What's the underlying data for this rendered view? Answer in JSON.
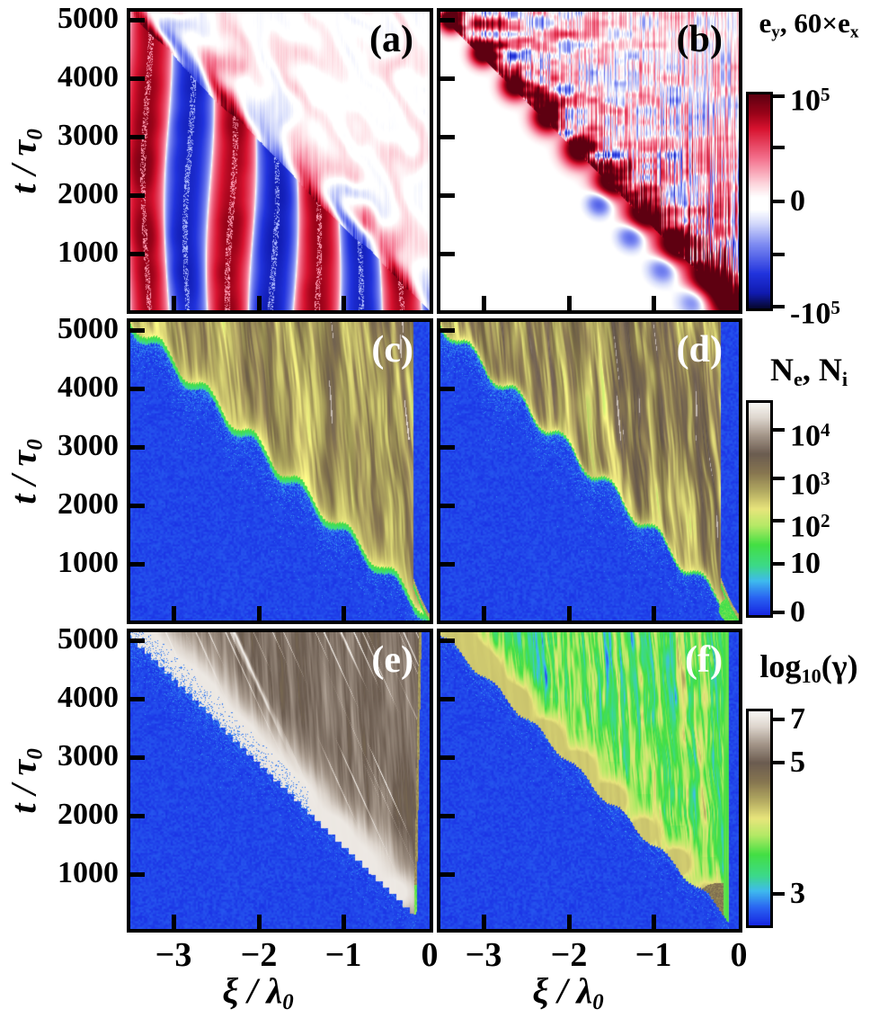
{
  "figure": {
    "panels": [
      {
        "id": "a",
        "label": "(a)",
        "label_color": "#000000",
        "quantity": "transverse field e_y"
      },
      {
        "id": "b",
        "label": "(b)",
        "label_color": "#000000",
        "quantity": "longitudinal field 60×e_x"
      },
      {
        "id": "c",
        "label": "(c)",
        "label_color": "#ffffff",
        "quantity": "electron density N_e"
      },
      {
        "id": "d",
        "label": "(d)",
        "label_color": "#ffffff",
        "quantity": "ion density N_i"
      },
      {
        "id": "e",
        "label": "(e)",
        "label_color": "#ffffff",
        "quantity": "electron log10(gamma)"
      },
      {
        "id": "f",
        "label": "(f)",
        "label_color": "#ffffff",
        "quantity": "ion log10(gamma)"
      }
    ],
    "x_axis": {
      "label_segments": [
        {
          "t": "ξ / λ"
        },
        {
          "sub": "0"
        }
      ],
      "tick_labels": [
        "−3",
        "−2",
        "−1",
        "0"
      ]
    },
    "y_axis": {
      "label_segments": [
        {
          "t": "t / τ"
        },
        {
          "sub": "0"
        }
      ],
      "tick_labels": [
        "5000",
        "4000",
        "3000",
        "2000",
        "1000"
      ]
    },
    "colorbars": [
      {
        "name": "field",
        "title_segments": [
          {
            "t": "e"
          },
          {
            "sub": "y"
          },
          {
            "t": ", 60×e"
          },
          {
            "sub": "x"
          }
        ],
        "colormap": "field_rwb",
        "ticks": [
          {
            "frac": 0.0,
            "label": [
              {
                "t": "10"
              },
              {
                "sup": "5"
              }
            ]
          },
          {
            "frac": 0.25,
            "label": []
          },
          {
            "frac": 0.5,
            "label": [
              {
                "t": "0"
              }
            ]
          },
          {
            "frac": 0.75,
            "label": []
          },
          {
            "frac": 1.0,
            "label": [
              {
                "t": "-10"
              },
              {
                "sup": "5"
              }
            ]
          }
        ]
      },
      {
        "name": "density",
        "title_segments": [
          {
            "t": "N"
          },
          {
            "sub": "e"
          },
          {
            "t": ", N"
          },
          {
            "sub": "i"
          }
        ],
        "colormap": "density",
        "ticks": [
          {
            "frac": 0.127,
            "label": [
              {
                "t": "10"
              },
              {
                "sup": "4"
              }
            ]
          },
          {
            "frac": 0.356,
            "label": [
              {
                "t": "10"
              },
              {
                "sup": "3"
              }
            ]
          },
          {
            "frac": 0.559,
            "label": [
              {
                "t": "10"
              },
              {
                "sup": "2"
              }
            ]
          },
          {
            "frac": 0.763,
            "label": [
              {
                "t": "10"
              }
            ]
          },
          {
            "frac": 0.991,
            "label": [
              {
                "t": "0"
              }
            ]
          }
        ]
      },
      {
        "name": "gamma",
        "title_segments": [
          {
            "t": "log"
          },
          {
            "sub": "10"
          },
          {
            "t": "(γ)"
          }
        ],
        "colormap": "density",
        "ticks": [
          {
            "frac": 0.038,
            "label": [
              {
                "t": "7"
              }
            ]
          },
          {
            "frac": 0.239,
            "label": [
              {
                "t": "5"
              }
            ]
          },
          {
            "frac": 0.857,
            "label": [
              {
                "t": "3"
              }
            ]
          }
        ]
      }
    ]
  },
  "chart_data": {
    "type": "heatmap",
    "layout": "3 rows x 2 columns of space-time maps sharing axes, one colorbar per row",
    "x": {
      "label": "ξ / λ0",
      "range": [
        -3.52,
        0
      ],
      "ticks": [
        -3,
        -2,
        -1,
        0
      ]
    },
    "y": {
      "label": "t / τ0",
      "range": [
        0,
        5100
      ],
      "ticks": [
        1000,
        2000,
        3000,
        4000,
        5000
      ]
    },
    "front": {
      "description": "hole-boring front: diagonal boundary running from (ξ≈-3.5, t≈5000) to (ξ≈0, t≈0)",
      "slope_t_per_xi": -1452,
      "blob_chain_xi": [
        -3.4,
        -3.02,
        -2.64,
        -2.26,
        -1.88,
        -1.5,
        -1.12,
        -0.74,
        -0.36
      ],
      "corner_xi": -0.08
    },
    "colorbar_scales": [
      {
        "panels": "a,b",
        "quantity": "e_y, 60×e_x",
        "type": "linear symmetric",
        "min": -100000,
        "max": 100000,
        "tick_values": [
          "10^5",
          "0",
          "-10^5"
        ]
      },
      {
        "panels": "c,d",
        "quantity": "N_e, N_i",
        "type": "log",
        "tick_values": [
          "10^4",
          "10^3",
          "10^2",
          "10",
          "0"
        ]
      },
      {
        "panels": "e,f",
        "quantity": "log10(γ)",
        "type": "linear",
        "tick_values": [
          7,
          5,
          3
        ]
      }
    ],
    "colormaps": {
      "field_rwb": [
        [
          0,
          "#5e0011"
        ],
        [
          0.09,
          "#9c0319"
        ],
        [
          0.16,
          "#d81330"
        ],
        [
          0.3,
          "#f4728e"
        ],
        [
          0.42,
          "#fdd7de"
        ],
        [
          0.48,
          "#ffffff"
        ],
        [
          0.54,
          "#ffffff"
        ],
        [
          0.6,
          "#d6dcfb"
        ],
        [
          0.7,
          "#7f8cf2"
        ],
        [
          0.84,
          "#2133dd"
        ],
        [
          0.93,
          "#101bb0"
        ],
        [
          1,
          "#060830"
        ]
      ],
      "density": [
        [
          0,
          "#f8f6f3"
        ],
        [
          0.07,
          "#ddd5cd"
        ],
        [
          0.15,
          "#a5978a"
        ],
        [
          0.24,
          "#6b5c50"
        ],
        [
          0.33,
          "#877650"
        ],
        [
          0.42,
          "#b5ac62"
        ],
        [
          0.5,
          "#e8e57c"
        ],
        [
          0.58,
          "#b4e966"
        ],
        [
          0.67,
          "#43df43"
        ],
        [
          0.77,
          "#3cd98a"
        ],
        [
          0.84,
          "#3fbbee"
        ],
        [
          0.92,
          "#2a63f2"
        ],
        [
          1,
          "#1728e2"
        ]
      ]
    },
    "panels": [
      {
        "id": "a",
        "content": "bold alternating red/blue vertical standing-wave stripes (period ≈ 1 λ0) below the front; faint pink/blue swirling field above the front"
      },
      {
        "id": "b",
        "content": "near-white background; chain of strong red spots along the front growing toward ξ=0; pale red/blue mottling and fine vertical striations above the front"
      },
      {
        "id": "c",
        "content": "solid blue (empty) below the front; bright green scalloped rim with yellow fringe at the front; dense yellow/brown vertical density streaks above; thin blue strip at right edge"
      },
      {
        "id": "d",
        "content": "same structure as (c) with thinner green rim, more brown streaks, blue strip at right edge and green spot at lower-right corner"
      },
      {
        "id": "e",
        "content": "blue below stepped front; grey-taupe region above with diagonal bright scratches and chain of white high-energy clouds on the front; blue strip at right edge"
      },
      {
        "id": "f",
        "content": "blue below front; green/cyan vertical streaks above with chain of tan hot spots on the front and cyan plumes; blue strip at right edge"
      }
    ]
  }
}
